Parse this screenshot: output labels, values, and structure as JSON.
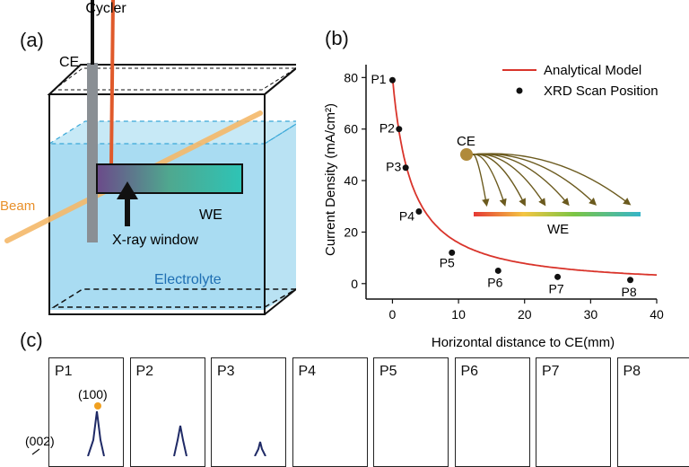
{
  "panel_a": {
    "label": "(a)",
    "cycler": "Cycler",
    "ce": "CE",
    "beam": "Beam",
    "we": "WE",
    "xray_window": "X-ray window",
    "electrolyte": "Electrolyte",
    "colors": {
      "water": "#a9dcf2",
      "beam": "#f5b96a",
      "red_wire": "#e05a2b",
      "gray_rod": "#8a8f94"
    }
  },
  "panel_b": {
    "label": "(b)",
    "inset_ce": "CE",
    "inset_we": "WE"
  },
  "chart_data": {
    "type": "line",
    "xlabel": "Horizontal distance to CE(mm)",
    "ylabel": "Current Density (mA/cm²)",
    "xlim": [
      -4,
      40
    ],
    "ylim": [
      -6,
      85
    ],
    "xticks": [
      0,
      10,
      20,
      30,
      40
    ],
    "yticks": [
      0,
      20,
      40,
      60,
      80
    ],
    "legend_position": "top-right",
    "series": [
      {
        "name": "Analytical Model",
        "kind": "line",
        "color": "#d9342b"
      },
      {
        "name": "XRD Scan Position",
        "kind": "scatter",
        "color": "#111111",
        "points": [
          {
            "label": "P1",
            "x": 0,
            "y": 79
          },
          {
            "label": "P2",
            "x": 1,
            "y": 60
          },
          {
            "label": "P3",
            "x": 2,
            "y": 45
          },
          {
            "label": "P4",
            "x": 4,
            "y": 28
          },
          {
            "label": "P5",
            "x": 9,
            "y": 12
          },
          {
            "label": "P6",
            "x": 16,
            "y": 5
          },
          {
            "label": "P7",
            "x": 25,
            "y": 2.6
          },
          {
            "label": "P8",
            "x": 36,
            "y": 1.4
          }
        ]
      }
    ]
  },
  "panel_c": {
    "label": "(c)",
    "boxes": [
      "P1",
      "P2",
      "P3",
      "P4",
      "P5",
      "P6",
      "P7",
      "P8"
    ],
    "annot_100": "(100)",
    "annot_002": "(002)"
  }
}
